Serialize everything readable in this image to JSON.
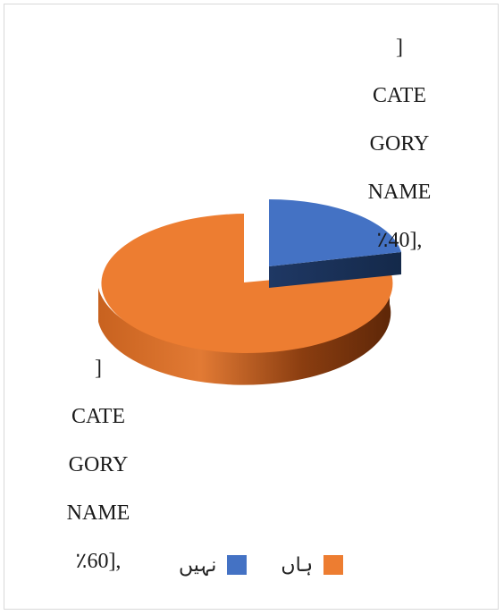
{
  "chart_data": {
    "type": "pie",
    "title": "",
    "series": [
      {
        "name": "",
        "categories": [
          "نہیں",
          "ہاں"
        ],
        "values": [
          40,
          60
        ],
        "colors": [
          "#4472C4",
          "#ED7D31"
        ]
      }
    ],
    "data_labels": [
      {
        "lines": [
          "]",
          "CATE",
          "GORY",
          "NAME",
          "٪40],"
        ]
      },
      {
        "lines": [
          "]",
          "CATE",
          "GORY",
          "NAME",
          "٪60],"
        ]
      }
    ],
    "legend": {
      "placement": "bottom",
      "items": [
        "ہاں",
        "نہیں"
      ]
    },
    "style": "3d-exploded"
  }
}
